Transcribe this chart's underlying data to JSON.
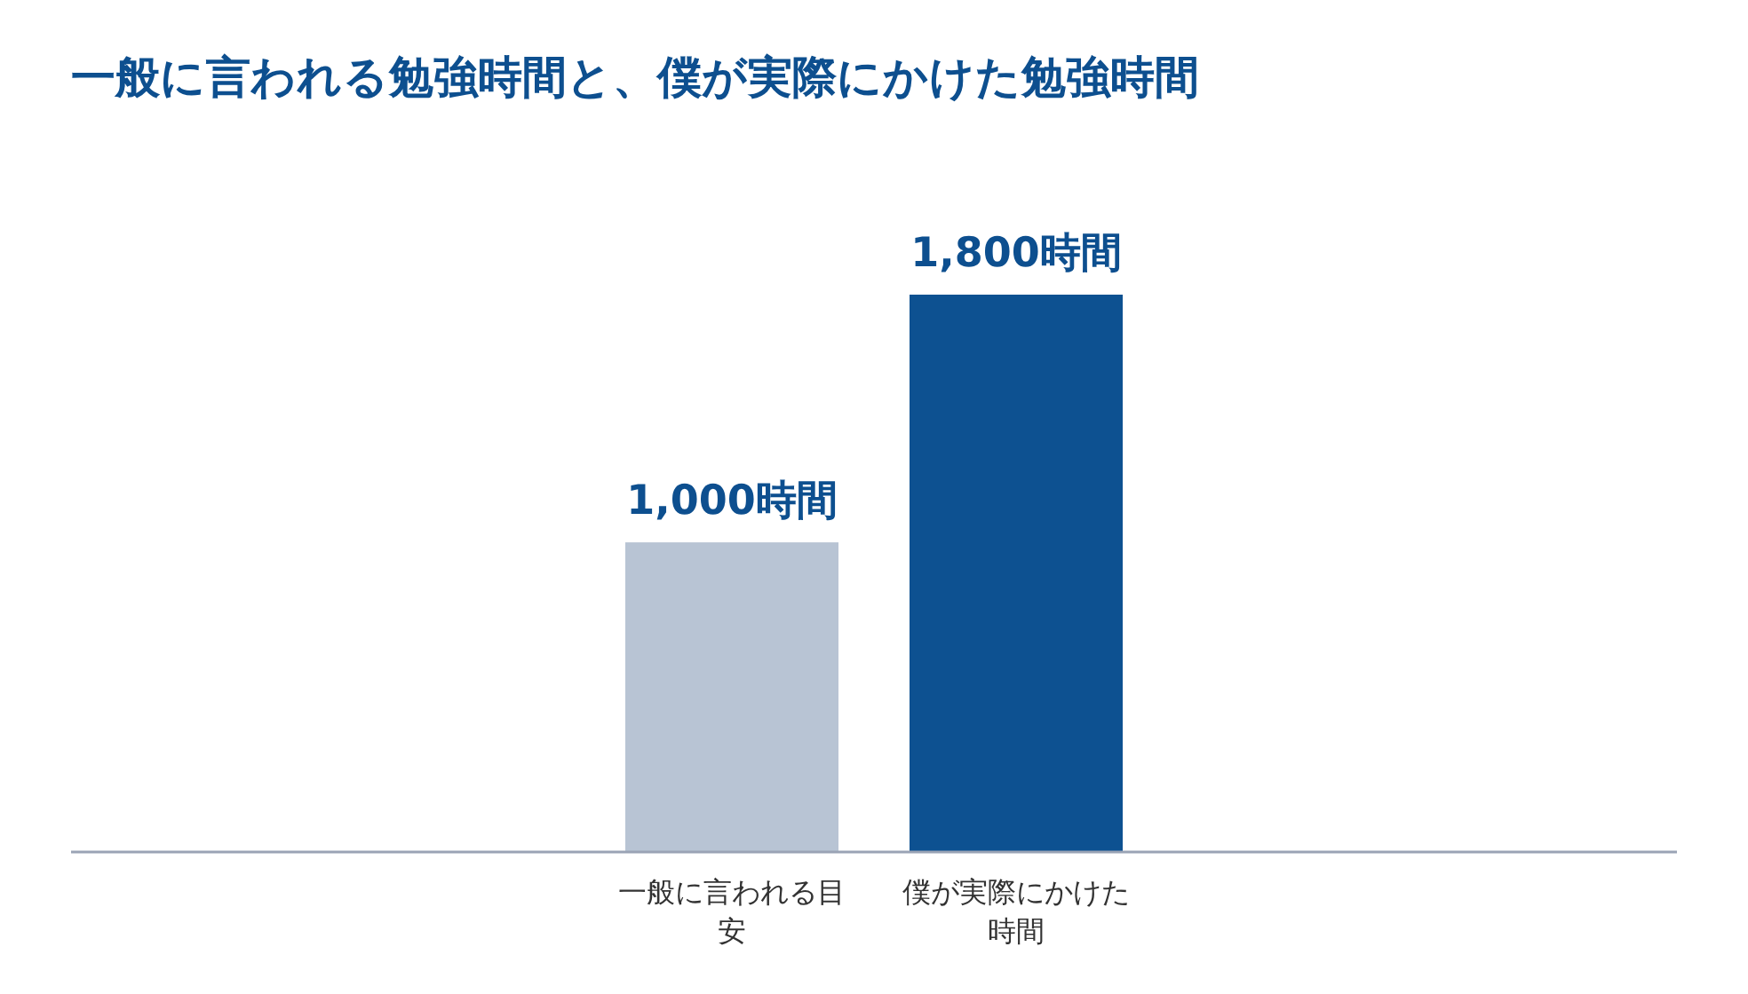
{
  "chart_data": {
    "type": "bar",
    "title": "一般に言われる勉強時間と、僕が実際にかけた勉強時間",
    "categories": [
      "一般に言われる目安",
      "僕が実際にかけた時間"
    ],
    "values": [
      1000,
      1800
    ],
    "colors": [
      "#b8c4d4",
      "#0d5191"
    ],
    "value_labels": [
      "1,000時間",
      "1,800時間"
    ]
  }
}
